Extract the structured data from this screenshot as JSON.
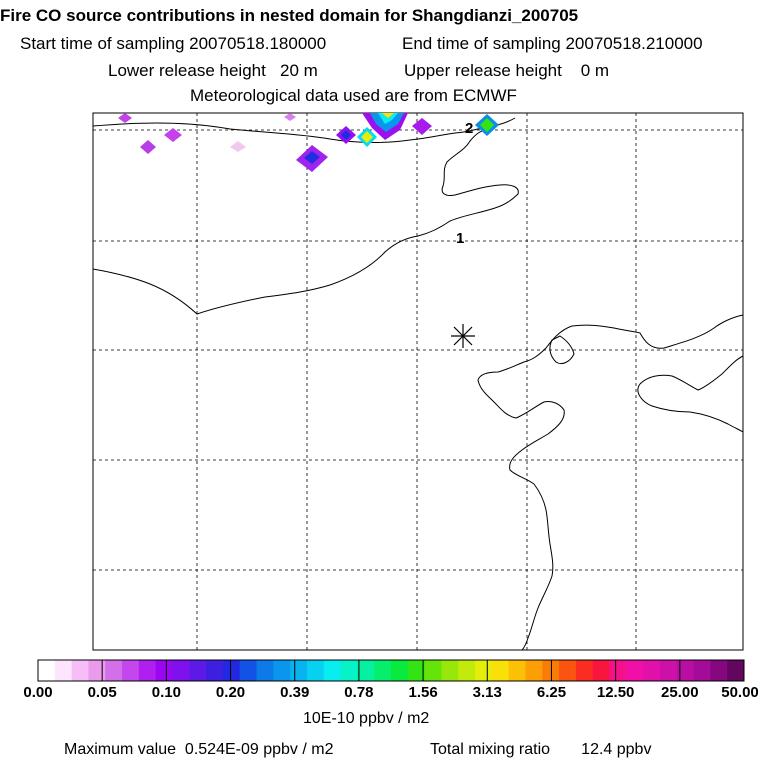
{
  "header": {
    "title": "Fire CO source contributions in nested domain for Shangdianzi_200705",
    "start_time": "Start time of sampling 20070518.180000",
    "end_time": "End time of sampling 20070518.210000",
    "lower_release": "Lower release height   20 m",
    "upper_release": "Upper release height    0 m",
    "met_source": "Meteorological data used are from ECMWF"
  },
  "map": {
    "contour_labels": [
      "2",
      "1"
    ],
    "station_marker": "station-asterisk"
  },
  "colorbar": {
    "tick_labels": [
      "0.00",
      "0.05",
      "0.10",
      "0.20",
      "0.39",
      "0.78",
      "1.56",
      "3.13",
      "6.25",
      "12.50",
      "25.00",
      "50.00"
    ],
    "colors": [
      "#ffffff",
      "#fde6fd",
      "#f6bdf6",
      "#eb9beb",
      "#d36fe9",
      "#c347ec",
      "#ae1ff0",
      "#9a06f0",
      "#7f11ee",
      "#5d1ae6",
      "#3d1fe0",
      "#2128df",
      "#1253e6",
      "#0c7ae9",
      "#0a96ed",
      "#08b3ef",
      "#07d0f0",
      "#08eef0",
      "#06f3c7",
      "#06f19f",
      "#05ef6c",
      "#08ea3d",
      "#32e414",
      "#66e40a",
      "#98e60a",
      "#c2ea0a",
      "#e4ee0a",
      "#f9e008",
      "#fcc006",
      "#fb9f05",
      "#fb7b07",
      "#fb5410",
      "#fa2d22",
      "#f8163e",
      "#f7108c",
      "#f010a7",
      "#e110aa",
      "#cd10a7",
      "#b90ea3",
      "#a30c98",
      "#85087f",
      "#620660"
    ],
    "units": "10E-10 ppbv / m2"
  },
  "footer": {
    "max_value": "Maximum value  0.524E-09 ppbv / m2",
    "total_mixing": "Total mixing ratio       12.4 ppbv"
  }
}
